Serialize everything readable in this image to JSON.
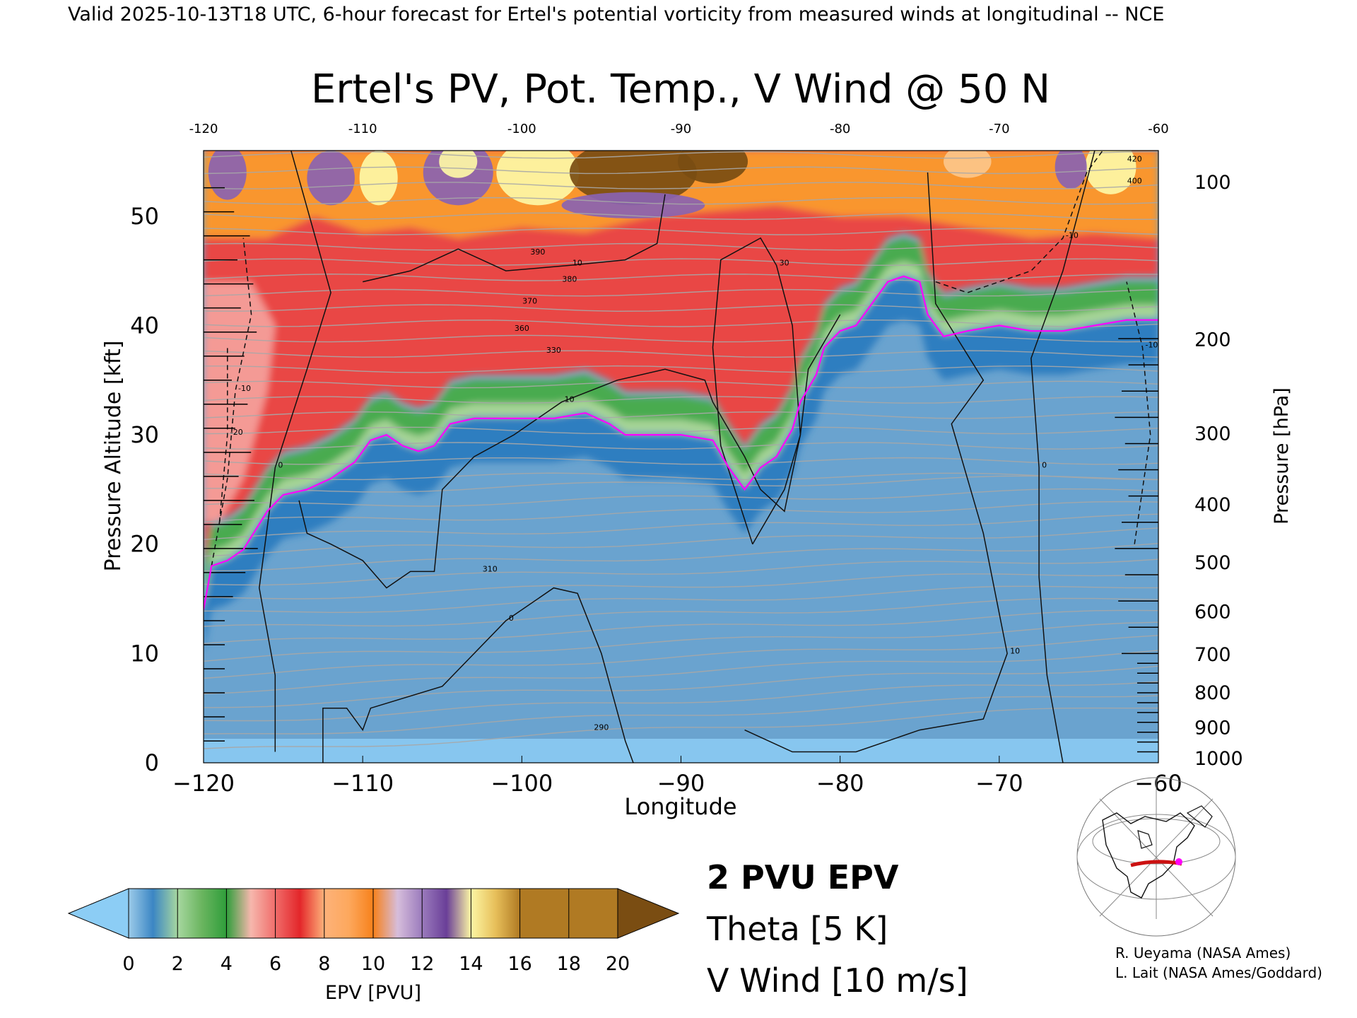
{
  "header": {
    "valid_text": "Valid 2025-10-13T18 UTC, 6-hour forecast for Ertel's potential vorticity from measured winds at longitudinal -- NCE"
  },
  "chart_data": {
    "type": "heatmap",
    "title": "Ertel's PV, Pot. Temp., V Wind @ 50 N",
    "xlabel": "Longitude",
    "ylabel": "Pressure Altitude [kft]",
    "y2label": "Pressure [hPa]",
    "xlim": [
      -120,
      -60
    ],
    "ylim": [
      0,
      56
    ],
    "x_ticks": [
      -120,
      -110,
      -100,
      -90,
      -80,
      -70,
      -60
    ],
    "x_tick_labels": [
      "−120",
      "−110",
      "−100",
      "−90",
      "−80",
      "−70",
      "−60"
    ],
    "top_ticks": [
      -120,
      -110,
      -100,
      -90,
      -80,
      -70,
      -60
    ],
    "top_tick_labels": [
      "-120",
      "-110",
      "-100",
      "-90",
      "-80",
      "-70",
      "-60"
    ],
    "y_ticks": [
      0,
      10,
      20,
      30,
      40,
      50
    ],
    "pressure_ticks": [
      {
        "label": "100",
        "kft": 53.1
      },
      {
        "label": "200",
        "kft": 38.7
      },
      {
        "label": "300",
        "kft": 30.1
      },
      {
        "label": "400",
        "kft": 23.6
      },
      {
        "label": "500",
        "kft": 18.3
      },
      {
        "label": "600",
        "kft": 13.8
      },
      {
        "label": "700",
        "kft": 9.9
      },
      {
        "label": "800",
        "kft": 6.4
      },
      {
        "label": "900",
        "kft": 3.2
      },
      {
        "label": "1000",
        "kft": 0.4
      }
    ],
    "two_pvu_line": [
      [
        -120,
        14
      ],
      [
        -119.5,
        18
      ],
      [
        -118.5,
        18.5
      ],
      [
        -117.5,
        19.5
      ],
      [
        -116,
        23
      ],
      [
        -115,
        24.5
      ],
      [
        -113.5,
        25
      ],
      [
        -112,
        26
      ],
      [
        -110.5,
        27.5
      ],
      [
        -109.5,
        29.5
      ],
      [
        -108.5,
        30
      ],
      [
        -107.5,
        29
      ],
      [
        -106.5,
        28.5
      ],
      [
        -105.5,
        29
      ],
      [
        -104.5,
        31
      ],
      [
        -103,
        31.5
      ],
      [
        -100,
        31.5
      ],
      [
        -98,
        31.5
      ],
      [
        -96,
        32
      ],
      [
        -94.5,
        31
      ],
      [
        -93.5,
        30
      ],
      [
        -92,
        30
      ],
      [
        -90,
        30
      ],
      [
        -88,
        29.5
      ],
      [
        -87,
        27
      ],
      [
        -86,
        25
      ],
      [
        -85,
        27
      ],
      [
        -84,
        28
      ],
      [
        -83,
        30.5
      ],
      [
        -82.5,
        33
      ],
      [
        -81.5,
        35.5
      ],
      [
        -81,
        38
      ],
      [
        -80,
        39.5
      ],
      [
        -79,
        40
      ],
      [
        -78,
        42
      ],
      [
        -77,
        44
      ],
      [
        -76,
        44.5
      ],
      [
        -75,
        44
      ],
      [
        -74.5,
        41
      ],
      [
        -73.5,
        39
      ],
      [
        -72,
        39.5
      ],
      [
        -70,
        40
      ],
      [
        -68,
        39.5
      ],
      [
        -66,
        39.5
      ],
      [
        -64,
        40
      ],
      [
        -62,
        40.5
      ],
      [
        -60,
        40.5
      ]
    ],
    "v_wind_contours": [
      {
        "label": "0",
        "style": "solid",
        "points": [
          [
            -115.5,
            1
          ],
          [
            -115.5,
            8
          ],
          [
            -116.5,
            16
          ],
          [
            -115.5,
            27
          ],
          [
            -113.5,
            36
          ],
          [
            -112,
            43
          ],
          [
            -114.5,
            56
          ]
        ]
      },
      {
        "label": "10",
        "style": "solid",
        "points": [
          [
            -114,
            24
          ],
          [
            -113.5,
            21
          ],
          [
            -112,
            20
          ],
          [
            -110,
            18.5
          ],
          [
            -108.5,
            16
          ],
          [
            -107,
            17.5
          ],
          [
            -105.5,
            17.5
          ],
          [
            -105,
            25
          ],
          [
            -103,
            28
          ],
          [
            -100.5,
            30
          ],
          [
            -97.5,
            33
          ],
          [
            -94,
            35
          ],
          [
            -91,
            36
          ],
          [
            -88.5,
            35
          ],
          [
            -88,
            33
          ],
          [
            -86,
            28
          ],
          [
            -85,
            25
          ],
          [
            -83.5,
            23
          ],
          [
            -82.5,
            30
          ],
          [
            -82,
            36
          ],
          [
            -80,
            41
          ]
        ]
      },
      {
        "label": "0",
        "style": "solid",
        "points": [
          [
            -112.5,
            0
          ],
          [
            -112.5,
            5
          ],
          [
            -111,
            5
          ],
          [
            -110,
            3
          ],
          [
            -109.5,
            5
          ],
          [
            -105,
            7
          ],
          [
            -101,
            13
          ],
          [
            -98,
            16
          ],
          [
            -96.5,
            15.5
          ],
          [
            -95,
            10
          ],
          [
            -93.5,
            2
          ],
          [
            -93,
            0
          ]
        ]
      },
      {
        "label": "10",
        "style": "solid",
        "points": [
          [
            -86,
            3
          ],
          [
            -83,
            1
          ],
          [
            -79,
            1
          ],
          [
            -75,
            3
          ],
          [
            -71,
            4
          ],
          [
            -69.5,
            10
          ],
          [
            -71,
            21
          ],
          [
            -73,
            31
          ],
          [
            -71,
            35
          ],
          [
            -74,
            42
          ],
          [
            -74.5,
            54
          ]
        ]
      },
      {
        "label": "0",
        "style": "solid",
        "points": [
          [
            -66,
            0
          ],
          [
            -67,
            8
          ],
          [
            -67.5,
            17
          ],
          [
            -67.5,
            27
          ],
          [
            -68,
            37
          ],
          [
            -66,
            45
          ],
          [
            -64,
            56
          ]
        ]
      },
      {
        "label": "10",
        "style": "solid",
        "points": [
          [
            -110,
            44
          ],
          [
            -107,
            45
          ],
          [
            -104,
            47
          ],
          [
            -101,
            45
          ],
          [
            -97,
            45.5
          ],
          [
            -93.5,
            46
          ],
          [
            -91.5,
            47.5
          ],
          [
            -91,
            52
          ]
        ]
      },
      {
        "label": "30",
        "style": "solid",
        "points": [
          [
            -85.5,
            20
          ],
          [
            -87.5,
            29
          ],
          [
            -88,
            38
          ],
          [
            -87.5,
            46
          ],
          [
            -85,
            48
          ],
          [
            -84,
            45.5
          ],
          [
            -83,
            40
          ],
          [
            -82.5,
            30
          ],
          [
            -83.5,
            25
          ],
          [
            -85.5,
            20
          ]
        ]
      },
      {
        "label": "-10",
        "style": "dashed",
        "points": [
          [
            -119.5,
            18
          ],
          [
            -118.5,
            26
          ],
          [
            -118,
            34
          ],
          [
            -117,
            41
          ],
          [
            -117.5,
            48
          ]
        ]
      },
      {
        "label": "-20",
        "style": "dashed",
        "points": [
          [
            -119,
            22
          ],
          [
            -118.5,
            30
          ],
          [
            -118.5,
            38
          ]
        ]
      },
      {
        "label": "-10",
        "style": "dashed",
        "points": [
          [
            -61.5,
            20
          ],
          [
            -60.5,
            30
          ],
          [
            -61,
            38
          ],
          [
            -62,
            44
          ]
        ]
      },
      {
        "label": "-10",
        "style": "dashed",
        "points": [
          [
            -74,
            44
          ],
          [
            -72,
            43
          ],
          [
            -68,
            45
          ],
          [
            -66,
            48
          ],
          [
            -64.5,
            54
          ],
          [
            -63.5,
            56
          ]
        ]
      }
    ],
    "theta_labels": [
      {
        "text": "390",
        "x": -99,
        "y": 46.5
      },
      {
        "text": "380",
        "x": -97,
        "y": 44
      },
      {
        "text": "370",
        "x": -99.5,
        "y": 42
      },
      {
        "text": "360",
        "x": -100,
        "y": 39.5
      },
      {
        "text": "330",
        "x": -98,
        "y": 37.5
      },
      {
        "text": "310",
        "x": -102,
        "y": 17.5
      },
      {
        "text": "290",
        "x": -95,
        "y": 3
      },
      {
        "text": "420",
        "x": -61.5,
        "y": 55
      },
      {
        "text": "400",
        "x": -61.5,
        "y": 53
      }
    ],
    "colorbar": {
      "label": "EPV [PVU]",
      "ticks": [
        "0",
        "2",
        "4",
        "6",
        "8",
        "10",
        "12",
        "14",
        "16",
        "18",
        "20"
      ],
      "under_color": "#8ccdf5",
      "over_color": "#7a4d12"
    },
    "legend": {
      "pv_line": "2 PVU EPV",
      "theta": "Theta [5 K]",
      "vwind": "V Wind [10 m/s]",
      "pv_color": "#ff00ff",
      "theta_color": "#999999"
    }
  },
  "credits": {
    "line1": "R. Ueyama (NASA Ames)",
    "line2": "L. Lait (NASA Ames/Goddard)"
  }
}
